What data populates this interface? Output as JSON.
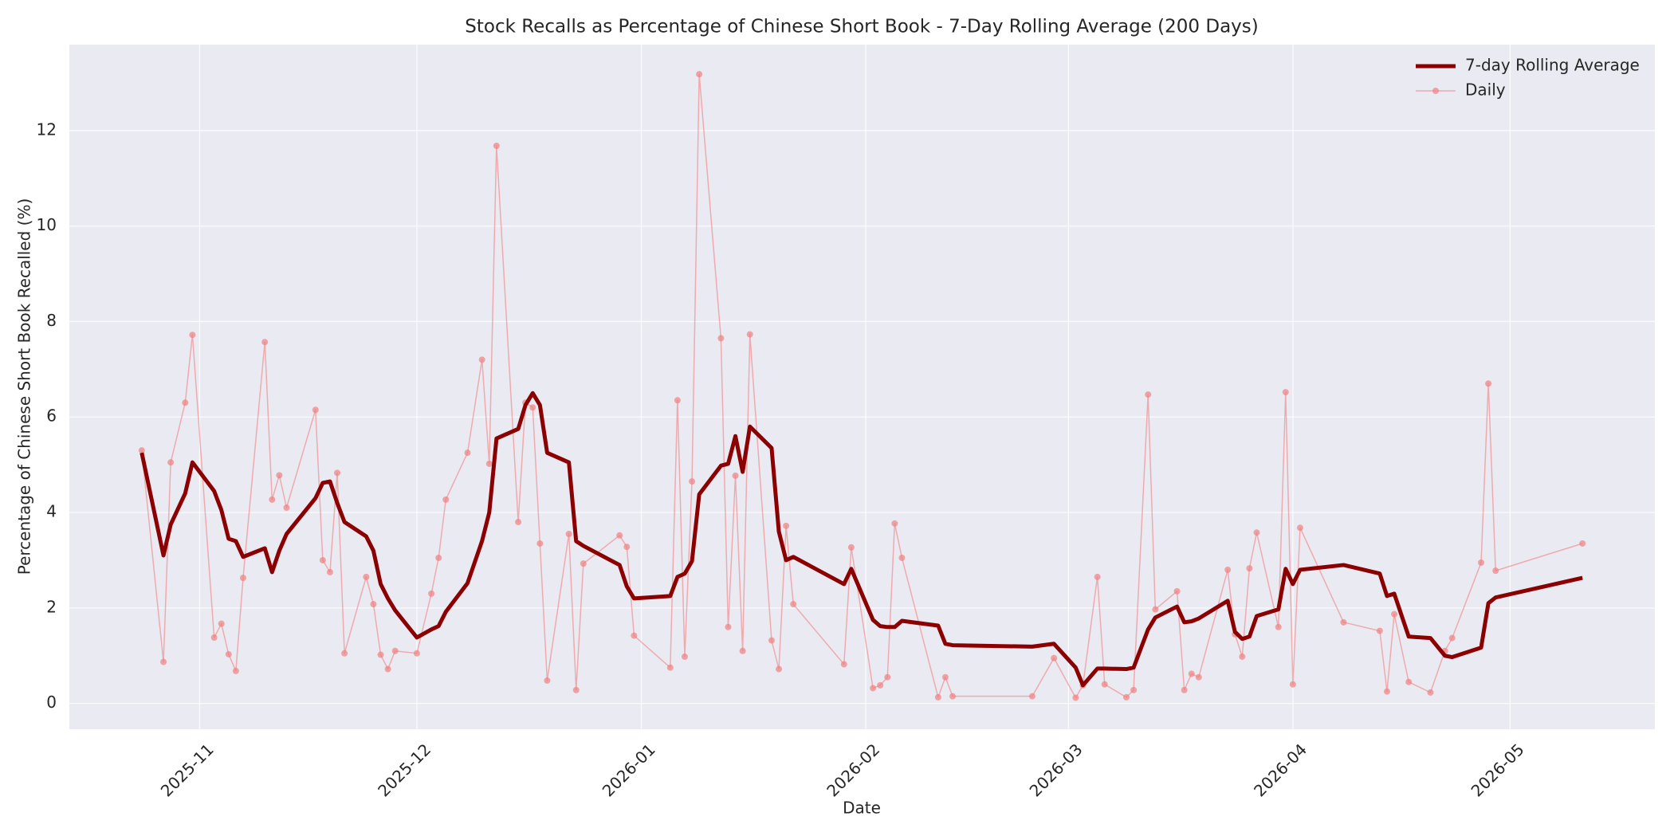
{
  "chart_data": {
    "type": "line",
    "title": "Stock Recalls as Percentage of Chinese Short Book - 7-Day Rolling Average (200 Days)",
    "x_label": "Date",
    "y_label": "Percentage of Chinese Short Book Recalled (%)",
    "grid": true,
    "legend": "upper right",
    "x": [
      "2025-10-24",
      "2025-10-27",
      "2025-10-28",
      "2025-10-30",
      "2025-10-31",
      "2025-11-03",
      "2025-11-04",
      "2025-11-05",
      "2025-11-06",
      "2025-11-07",
      "2025-11-10",
      "2025-11-11",
      "2025-11-12",
      "2025-11-13",
      "2025-11-17",
      "2025-11-18",
      "2025-11-19",
      "2025-11-20",
      "2025-11-21",
      "2025-11-24",
      "2025-11-25",
      "2025-11-26",
      "2025-11-27",
      "2025-11-28",
      "2025-12-01",
      "2025-12-03",
      "2025-12-04",
      "2025-12-05",
      "2025-12-08",
      "2025-12-10",
      "2025-12-11",
      "2025-12-12",
      "2025-12-15",
      "2025-12-16",
      "2025-12-17",
      "2025-12-18",
      "2025-12-19",
      "2025-12-22",
      "2025-12-23",
      "2025-12-24",
      "2025-12-29",
      "2025-12-30",
      "2025-12-31",
      "2026-01-05",
      "2026-01-06",
      "2026-01-07",
      "2026-01-08",
      "2026-01-09",
      "2026-01-12",
      "2026-01-13",
      "2026-01-14",
      "2026-01-15",
      "2026-01-16",
      "2026-01-19",
      "2026-01-20",
      "2026-01-21",
      "2026-01-22",
      "2026-01-29",
      "2026-01-30",
      "2026-02-02",
      "2026-02-03",
      "2026-02-04",
      "2026-02-05",
      "2026-02-06",
      "2026-02-11",
      "2026-02-12",
      "2026-02-13",
      "2026-02-24",
      "2026-02-27",
      "2026-03-02",
      "2026-03-03",
      "2026-03-05",
      "2026-03-06",
      "2026-03-09",
      "2026-03-10",
      "2026-03-12",
      "2026-03-13",
      "2026-03-16",
      "2026-03-17",
      "2026-03-18",
      "2026-03-19",
      "2026-03-23",
      "2026-03-24",
      "2026-03-25",
      "2026-03-26",
      "2026-03-27",
      "2026-03-30",
      "2026-03-31",
      "2026-04-01",
      "2026-04-02",
      "2026-04-08",
      "2026-04-13",
      "2026-04-14",
      "2026-04-15",
      "2026-04-17",
      "2026-04-20",
      "2026-04-22",
      "2026-04-23",
      "2026-04-27",
      "2026-04-28",
      "2026-04-29",
      "2026-05-11"
    ],
    "series": [
      {
        "name": "7-day Rolling Average",
        "color": "#8b0000",
        "width": 5,
        "marker": false,
        "values": [
          5.25,
          3.1,
          3.75,
          4.4,
          5.05,
          4.45,
          4.05,
          3.45,
          3.4,
          3.07,
          3.25,
          2.75,
          3.2,
          3.55,
          4.3,
          4.62,
          4.65,
          4.2,
          3.8,
          3.5,
          3.2,
          2.5,
          2.2,
          1.95,
          1.38,
          1.55,
          1.62,
          1.92,
          2.52,
          3.4,
          4.0,
          5.55,
          5.75,
          6.25,
          6.5,
          6.25,
          5.25,
          5.05,
          3.4,
          3.3,
          2.9,
          2.45,
          2.2,
          2.25,
          2.65,
          2.72,
          2.98,
          4.38,
          4.98,
          5.02,
          5.6,
          4.85,
          5.8,
          5.35,
          3.6,
          3.0,
          3.07,
          2.5,
          2.82,
          1.75,
          1.62,
          1.6,
          1.6,
          1.73,
          1.63,
          1.25,
          1.22,
          1.19,
          1.25,
          0.75,
          0.38,
          0.73,
          0.73,
          0.72,
          0.75,
          1.55,
          1.8,
          2.03,
          1.7,
          1.72,
          1.78,
          2.15,
          1.5,
          1.35,
          1.4,
          1.83,
          1.97,
          2.82,
          2.5,
          2.8,
          2.9,
          2.72,
          2.25,
          2.3,
          1.4,
          1.37,
          1.0,
          0.97,
          1.17,
          2.1,
          2.22,
          2.63
        ]
      },
      {
        "name": "Daily",
        "color": "#f08080",
        "width": 1.5,
        "marker": true,
        "values": [
          5.3,
          0.87,
          5.05,
          6.3,
          7.72,
          1.38,
          1.67,
          1.03,
          0.68,
          2.63,
          7.57,
          4.27,
          4.78,
          4.1,
          6.15,
          3.0,
          2.75,
          4.83,
          1.05,
          2.65,
          2.08,
          1.02,
          0.72,
          1.1,
          1.05,
          2.3,
          3.05,
          4.27,
          5.25,
          7.2,
          5.02,
          11.68,
          3.8,
          6.3,
          6.2,
          3.35,
          0.48,
          3.55,
          0.28,
          2.93,
          3.52,
          3.28,
          1.42,
          0.75,
          6.35,
          0.98,
          4.65,
          13.18,
          7.65,
          1.6,
          4.77,
          1.1,
          7.73,
          1.32,
          0.72,
          3.72,
          2.08,
          0.82,
          3.27,
          0.32,
          0.38,
          0.55,
          3.77,
          3.05,
          0.13,
          0.55,
          0.15,
          0.15,
          0.95,
          0.12,
          0.38,
          2.65,
          0.4,
          0.13,
          0.28,
          6.47,
          1.97,
          2.35,
          0.28,
          0.62,
          0.55,
          2.8,
          1.45,
          0.98,
          2.83,
          3.58,
          1.6,
          6.52,
          0.4,
          3.68,
          1.7,
          1.52,
          0.25,
          1.87,
          0.45,
          0.23,
          1.1,
          1.37,
          2.95,
          6.7,
          2.78,
          3.35
        ]
      }
    ],
    "xlim": [
      "2025-10-14",
      "2026-05-21"
    ],
    "xticks": [
      {
        "value": "2025-11-01",
        "label": "2025-11"
      },
      {
        "value": "2025-12-01",
        "label": "2025-12"
      },
      {
        "value": "2026-01-01",
        "label": "2026-01"
      },
      {
        "value": "2026-02-01",
        "label": "2026-02"
      },
      {
        "value": "2026-03-01",
        "label": "2026-03"
      },
      {
        "value": "2026-04-01",
        "label": "2026-04"
      },
      {
        "value": "2026-05-01",
        "label": "2026-05"
      }
    ],
    "ylim": [
      -0.54,
      13.8
    ],
    "yticks": [
      0,
      2,
      4,
      6,
      8,
      10,
      12
    ]
  }
}
